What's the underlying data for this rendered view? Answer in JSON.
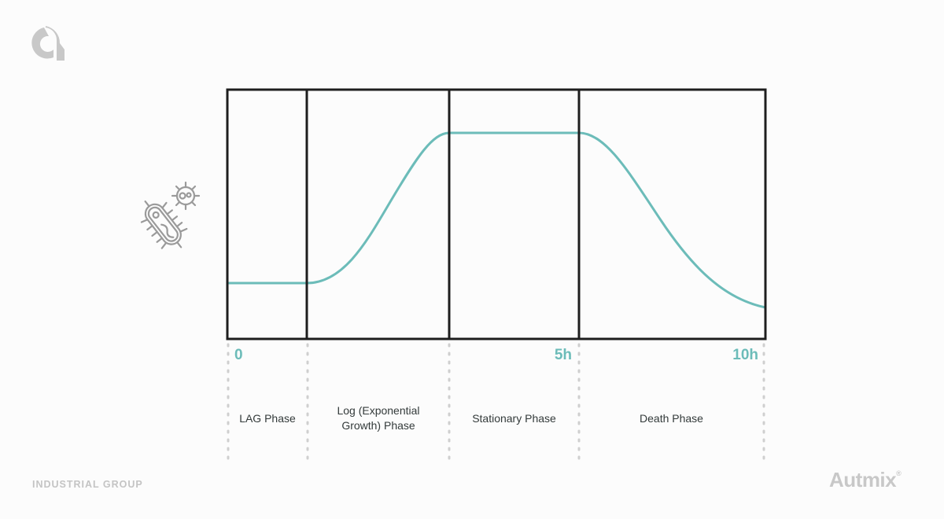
{
  "logo": {
    "icon": "autmix-logo-icon",
    "color": "#c8c8c8"
  },
  "illustration": {
    "icon": "bacteria-icon",
    "color": "#9a9a9a"
  },
  "chart": {
    "curve_color": "#6cbcb9",
    "frame_color": "#1e1e1e",
    "ticks": [
      "0",
      "5h",
      "10h"
    ],
    "phases": [
      "LAG Phase",
      "Log (Exponential Growth) Phase",
      "Stationary Phase",
      "Death Phase"
    ],
    "phase_lines": [
      "Log (Exponential",
      "Growth) Phase"
    ]
  },
  "footer": {
    "left": "INDUSTRIAL GROUP",
    "brand": "Autmix",
    "brand_mark": "®"
  }
}
